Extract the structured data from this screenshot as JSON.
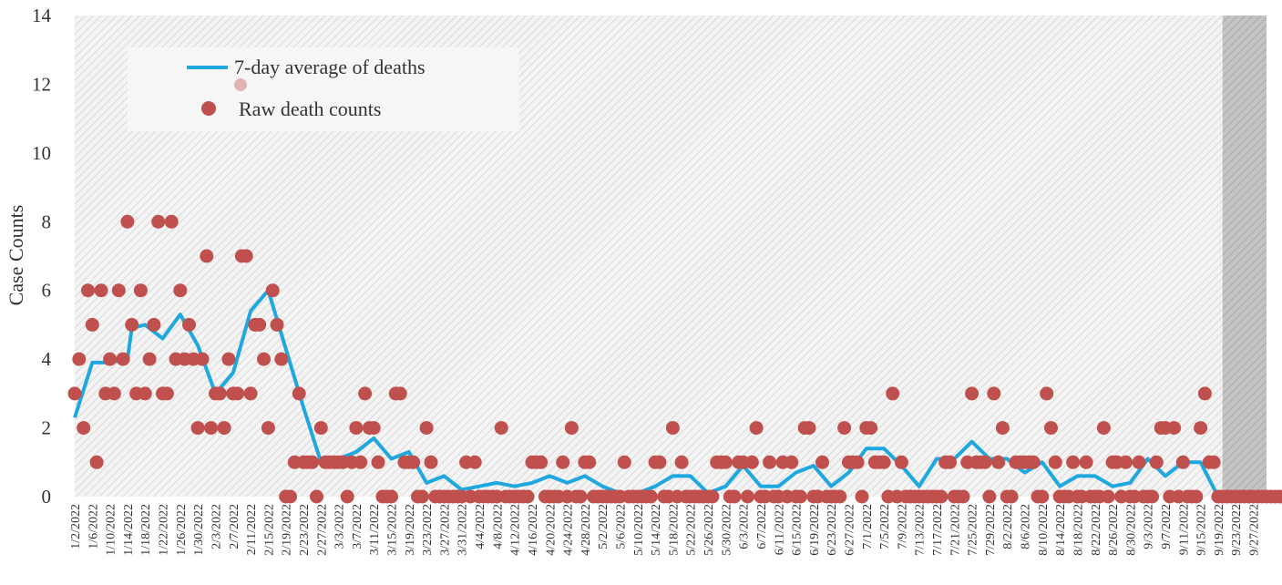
{
  "chart_data": {
    "type": "line",
    "ylabel": "Case Counts",
    "ylim": [
      0,
      14
    ],
    "yticks": [
      0,
      2,
      4,
      6,
      8,
      10,
      12,
      14
    ],
    "x_start": "2022-01-02",
    "x_end": "2022-09-30",
    "x_tick_labels": [
      "1/2/2022",
      "1/6/2022",
      "1/10/2022",
      "1/14/2022",
      "1/18/2022",
      "1/22/2022",
      "1/26/2022",
      "1/30/2022",
      "2/3/2022",
      "2/7/2022",
      "2/11/2022",
      "2/15/2022",
      "2/19/2022",
      "2/23/2022",
      "2/27/2022",
      "3/3/2022",
      "3/7/2022",
      "3/11/2022",
      "3/15/2022",
      "3/19/2022",
      "3/23/2022",
      "3/27/2022",
      "3/31/2022",
      "4/4/2022",
      "4/8/2022",
      "4/12/2022",
      "4/16/2022",
      "4/20/2022",
      "4/24/2022",
      "4/28/2022",
      "5/2/2022",
      "5/6/2022",
      "5/10/2022",
      "5/14/2022",
      "5/18/2022",
      "5/22/2022",
      "5/26/2022",
      "5/30/2022",
      "6/3/2022",
      "6/7/2022",
      "6/11/2022",
      "6/15/2022",
      "6/19/2022",
      "6/23/2022",
      "6/27/2022",
      "7/1/2022",
      "7/5/2022",
      "7/9/2022",
      "7/13/2022",
      "7/17/2022",
      "7/21/2022",
      "7/25/2022",
      "7/29/2022",
      "8/2/2022",
      "8/6/2022",
      "8/10/2022",
      "8/14/2022",
      "8/18/2022",
      "8/22/2022",
      "8/26/2022",
      "8/30/2022",
      "9/3/2022",
      "9/7/2022",
      "9/11/2022",
      "9/15/2022",
      "9/19/2022",
      "9/23/2022",
      "9/27/2022"
    ],
    "shaded_region": {
      "from": "2022-09-20",
      "to": "2022-09-30"
    },
    "legend": "top-left",
    "grid": false,
    "series": [
      {
        "name": "7-day average of deaths",
        "type": "line",
        "color": "#1fa8e0",
        "x": [
          "2022-01-02",
          "2022-01-06",
          "2022-01-10",
          "2022-01-14",
          "2022-01-15",
          "2022-01-18",
          "2022-01-22",
          "2022-01-26",
          "2022-01-30",
          "2022-02-03",
          "2022-02-07",
          "2022-02-11",
          "2022-02-15",
          "2022-02-19",
          "2022-02-23",
          "2022-02-27",
          "2022-03-03",
          "2022-03-07",
          "2022-03-11",
          "2022-03-15",
          "2022-03-19",
          "2022-03-23",
          "2022-03-27",
          "2022-03-31",
          "2022-04-04",
          "2022-04-08",
          "2022-04-12",
          "2022-04-16",
          "2022-04-20",
          "2022-04-24",
          "2022-04-28",
          "2022-05-02",
          "2022-05-06",
          "2022-05-10",
          "2022-05-14",
          "2022-05-18",
          "2022-05-22",
          "2022-05-26",
          "2022-05-30",
          "2022-06-03",
          "2022-06-07",
          "2022-06-11",
          "2022-06-15",
          "2022-06-19",
          "2022-06-23",
          "2022-06-27",
          "2022-07-01",
          "2022-07-05",
          "2022-07-09",
          "2022-07-13",
          "2022-07-17",
          "2022-07-21",
          "2022-07-25",
          "2022-07-29",
          "2022-08-02",
          "2022-08-06",
          "2022-08-10",
          "2022-08-14",
          "2022-08-18",
          "2022-08-22",
          "2022-08-26",
          "2022-08-30",
          "2022-09-03",
          "2022-09-07",
          "2022-09-11",
          "2022-09-15",
          "2022-09-19",
          "2022-09-23",
          "2022-09-27",
          "2022-09-30"
        ],
        "values": [
          2.3,
          3.9,
          3.9,
          4.0,
          4.9,
          5.0,
          4.6,
          5.3,
          4.4,
          3.0,
          3.6,
          5.4,
          6.0,
          4.3,
          2.6,
          1.0,
          1.1,
          1.3,
          1.7,
          1.1,
          1.3,
          0.4,
          0.6,
          0.2,
          0.3,
          0.4,
          0.3,
          0.4,
          0.6,
          0.4,
          0.6,
          0.3,
          0.1,
          0.1,
          0.3,
          0.6,
          0.6,
          0.1,
          0.3,
          0.9,
          0.3,
          0.3,
          0.7,
          0.9,
          0.3,
          0.7,
          1.4,
          1.4,
          0.9,
          0.3,
          1.1,
          1.1,
          1.6,
          1.1,
          1.1,
          0.7,
          1.0,
          0.3,
          0.6,
          0.6,
          0.3,
          0.4,
          1.1,
          0.6,
          1.0,
          1.0,
          0.0,
          0.0,
          0.0,
          0.0
        ]
      },
      {
        "name": "Raw death counts",
        "type": "scatter",
        "color": "#c0504d",
        "x_start": "2022-01-02",
        "values": [
          3,
          4,
          2,
          6,
          5,
          1,
          6,
          3,
          4,
          3,
          6,
          4,
          8,
          5,
          3,
          6,
          3,
          4,
          5,
          8,
          3,
          3,
          8,
          4,
          6,
          4,
          5,
          4,
          2,
          4,
          7,
          2,
          3,
          3,
          2,
          4,
          3,
          3,
          7,
          7,
          3,
          5,
          5,
          4,
          2,
          6,
          5,
          4,
          0,
          0,
          1,
          3,
          1,
          1,
          1,
          0,
          2,
          1,
          1,
          1,
          1,
          1,
          0,
          1,
          2,
          1,
          3,
          2,
          2,
          1,
          0,
          0,
          0,
          3,
          3,
          1,
          1,
          1,
          0,
          0,
          2,
          1,
          0,
          0,
          0,
          0,
          0,
          0,
          0,
          1,
          0,
          1,
          0,
          0,
          0,
          0,
          0,
          2,
          0,
          0,
          0,
          0,
          0,
          0,
          1,
          1,
          1,
          0,
          0,
          0,
          0,
          1,
          0,
          2,
          0,
          0,
          1,
          1,
          0,
          0,
          0,
          0,
          0,
          0,
          0,
          1,
          0,
          0,
          0,
          0,
          0,
          0,
          1,
          1,
          0,
          0,
          2,
          0,
          1,
          0,
          0,
          0,
          0,
          0,
          0,
          0,
          1,
          1,
          1,
          0,
          0,
          1,
          1,
          0,
          1,
          2,
          0,
          0,
          1,
          0,
          0,
          1,
          0,
          1,
          0,
          0,
          2,
          2,
          0,
          0,
          1,
          0,
          0,
          0,
          0,
          2,
          1,
          1,
          1,
          0,
          2,
          2,
          1,
          1,
          1,
          0,
          3,
          0,
          1,
          0,
          0,
          0,
          0,
          0,
          0,
          0,
          0,
          0,
          1,
          1,
          0,
          0,
          0,
          1,
          3,
          1,
          1,
          1,
          0,
          3,
          1,
          2,
          0,
          0,
          1,
          1,
          1,
          1,
          1,
          0,
          0,
          3,
          2,
          1,
          0,
          0,
          0,
          1,
          0,
          0,
          1,
          0,
          0,
          0,
          2,
          0,
          1,
          1,
          0,
          1,
          0,
          0,
          1,
          0,
          0,
          0,
          1,
          2,
          2,
          0,
          2,
          0,
          1,
          0,
          0,
          0,
          2,
          3,
          1,
          1,
          0,
          0,
          0,
          0,
          0,
          0,
          0,
          0,
          0,
          0,
          0,
          0,
          0,
          0,
          0,
          0,
          0,
          0,
          0,
          0,
          0,
          0
        ]
      }
    ]
  },
  "legend": {
    "line_label": "7-day average of deaths",
    "dot_label": "Raw death counts"
  },
  "colors": {
    "line": "#1fa8e0",
    "dots": "#c0504d",
    "hatch_bg": "#e8e8e8",
    "shade": "#c8c8c8"
  }
}
